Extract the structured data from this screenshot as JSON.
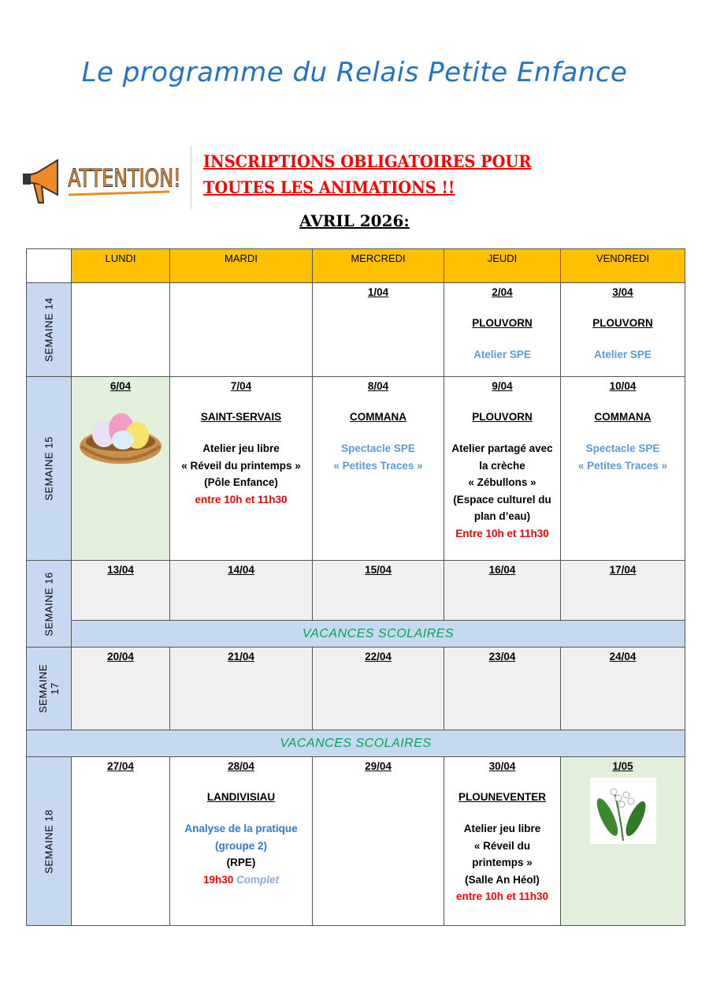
{
  "title": "Le programme du Relais Petite Enfance",
  "attention_image_text": "ATTENTION !",
  "notice": {
    "line1": "INSCRIPTIONS OBLIGATOIRES POUR",
    "line2": "TOUTES LES ANIMATIONS !!"
  },
  "month": "AVRIL 2026:",
  "colors": {
    "header": "#ffc000",
    "week": "#c6d9f1",
    "holiday_text": "#00a650",
    "red": "#ff0000",
    "blue": "#5b9bd5",
    "green_cell": "#e2efda",
    "gray_cell": "#f0f0f0"
  },
  "headers": [
    "LUNDI",
    "MARDI",
    "MERCREDI",
    "JEUDI",
    "VENDREDI"
  ],
  "holiday_label": "VACANCES SCOLAIRES",
  "weeks": [
    {
      "label": "SEMAINE  14",
      "days": [
        {},
        {},
        {
          "date": "1/04"
        },
        {
          "date": "2/04",
          "place": "PLOUVORN",
          "lines": [
            [
              {
                "t": "Atelier SPE",
                "c": "lblue"
              }
            ]
          ]
        },
        {
          "date": "3/04",
          "place": "PLOUVORN",
          "lines": [
            [
              {
                "t": "Atelier SPE",
                "c": "lblue"
              }
            ]
          ]
        }
      ]
    },
    {
      "label": "SEMAINE  15",
      "days": [
        {
          "date": "6/04",
          "image": "easter-eggs-nest",
          "bg": "green"
        },
        {
          "date": "7/04",
          "place": "SAINT-SERVAIS",
          "lines": [
            [
              {
                "t": "Atelier jeu libre",
                "c": "black"
              }
            ],
            [
              {
                "t": "« Réveil du printemps »",
                "c": "black"
              }
            ],
            [
              {
                "t": "(Pôle Enfance)",
                "c": "black"
              }
            ],
            [
              {
                "t": "entre 10h et 11h30",
                "c": "red"
              }
            ]
          ]
        },
        {
          "date": "8/04",
          "place": "COMMANA",
          "lines": [
            [
              {
                "t": "Spectacle SPE",
                "c": "lblue"
              }
            ],
            [
              {
                "t": "« Petites Traces »",
                "c": "lblue"
              }
            ]
          ]
        },
        {
          "date": "9/04",
          "place": "PLOUVORN",
          "lines": [
            [
              {
                "t": "Atelier partagé avec",
                "c": "black"
              }
            ],
            [
              {
                "t": "la crèche",
                "c": "black"
              }
            ],
            [
              {
                "t": "« Zébullons »",
                "c": "black"
              }
            ],
            [
              {
                "t": "(Espace culturel du",
                "c": "black"
              }
            ],
            [
              {
                "t": "plan d’eau)",
                "c": "black"
              }
            ],
            [
              {
                "t": "Entre 10h et 11h30",
                "c": "red"
              }
            ]
          ]
        },
        {
          "date": "10/04",
          "place": "COMMANA",
          "lines": [
            [
              {
                "t": "Spectacle SPE",
                "c": "lblue"
              }
            ],
            [
              {
                "t": "« Petites Traces »",
                "c": "lblue"
              }
            ]
          ]
        }
      ]
    },
    {
      "label": "SEMAINE  16",
      "holiday": true,
      "days": [
        {
          "date": "13/04",
          "bg": "gray"
        },
        {
          "date": "14/04",
          "bg": "gray"
        },
        {
          "date": "15/04",
          "bg": "gray"
        },
        {
          "date": "16/04",
          "bg": "gray"
        },
        {
          "date": "17/04",
          "bg": "gray"
        }
      ]
    },
    {
      "label": "SEMAINE  17",
      "holiday_after": true,
      "days": [
        {
          "date": "20/04",
          "bg": "gray"
        },
        {
          "date": "21/04",
          "bg": "gray"
        },
        {
          "date": "22/04",
          "bg": "gray"
        },
        {
          "date": "23/04",
          "bg": "gray"
        },
        {
          "date": "24/04",
          "bg": "gray"
        }
      ]
    },
    {
      "label": "SEMAINE  18",
      "days": [
        {
          "date": "27/04"
        },
        {
          "date": "28/04",
          "place": "LANDIVISIAU",
          "lines": [
            [
              {
                "t": "Analyse de la pratique",
                "c": "blue"
              }
            ],
            [
              {
                "t": "(groupe 2)",
                "c": "blue"
              }
            ],
            [
              {
                "t": "(RPE)",
                "c": "black"
              }
            ],
            [
              {
                "t": "19h30 ",
                "c": "red"
              },
              {
                "t": "Complet",
                "c": "complet"
              }
            ]
          ]
        },
        {
          "date": "29/04"
        },
        {
          "date": "30/04",
          "place": "PLOUNEVENTER",
          "lines": [
            [
              {
                "t": "Atelier jeu libre",
                "c": "black"
              }
            ],
            [
              {
                "t": "« Réveil du",
                "c": "black"
              }
            ],
            [
              {
                "t": "printemps »",
                "c": "black"
              }
            ],
            [
              {
                "t": "(Salle An Héol)",
                "c": "black"
              }
            ],
            [
              {
                "t": "entre 10h et 11h30",
                "c": "red"
              }
            ]
          ]
        },
        {
          "date": "1/05",
          "image": "lily-of-the-valley",
          "bg": "green"
        }
      ]
    }
  ]
}
